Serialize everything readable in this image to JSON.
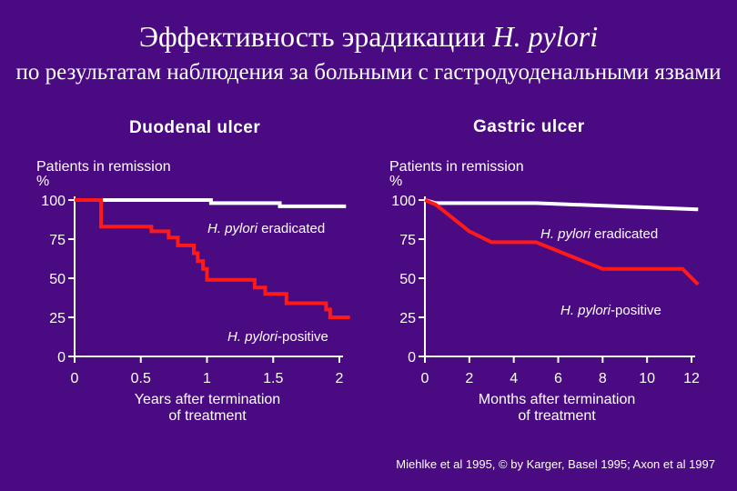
{
  "title_main": "Эффективность эрадикации ",
  "title_italic": "H. pylori",
  "subtitle": "по результатам наблюдения за больными с гастродуоденальными язвами",
  "source": "Miehlke et al 1995, © by Karger, Basel 1995; Axon et al 1997",
  "colors": {
    "background": "#4a0a82",
    "eradicated": "#ffffff",
    "positive": "#ff1a1a",
    "axis": "#ffffff"
  },
  "chart_data": [
    {
      "type": "line",
      "title": "Duodenal ulcer",
      "ylabel": "Patients in remission\n%",
      "xlabel": "Years after termination\nof treatment",
      "xlim": [
        0,
        2
      ],
      "ylim": [
        0,
        100
      ],
      "xticks": [
        0,
        0.5,
        1,
        1.5,
        2
      ],
      "xtick_labels": [
        "0",
        "0.5",
        "1",
        "1.5",
        "2"
      ],
      "yticks": [
        0,
        25,
        50,
        75,
        100
      ],
      "ytick_labels": [
        "0",
        "25",
        "50",
        "75",
        "100"
      ],
      "step": true,
      "series": [
        {
          "name": "H. pylori eradicated",
          "label_prefix": "H. pylori",
          "label_suffix": " eradicated",
          "color": "#ffffff",
          "points": [
            [
              0,
              100
            ],
            [
              1.03,
              100
            ],
            [
              1.03,
              98
            ],
            [
              1.55,
              98
            ],
            [
              1.55,
              96
            ],
            [
              2.05,
              96
            ]
          ]
        },
        {
          "name": "H. pylori-positive",
          "label_prefix": "H. pylori",
          "label_suffix": "-positive",
          "color": "#ff1a1a",
          "points": [
            [
              0,
              100
            ],
            [
              0.2,
              100
            ],
            [
              0.2,
              83
            ],
            [
              0.58,
              83
            ],
            [
              0.58,
              80
            ],
            [
              0.71,
              80
            ],
            [
              0.71,
              76
            ],
            [
              0.78,
              76
            ],
            [
              0.78,
              71
            ],
            [
              0.9,
              71
            ],
            [
              0.9,
              66
            ],
            [
              0.93,
              66
            ],
            [
              0.93,
              61
            ],
            [
              0.97,
              61
            ],
            [
              0.97,
              56
            ],
            [
              1.0,
              56
            ],
            [
              1.0,
              49
            ],
            [
              1.36,
              49
            ],
            [
              1.36,
              44
            ],
            [
              1.44,
              44
            ],
            [
              1.44,
              40
            ],
            [
              1.6,
              40
            ],
            [
              1.6,
              34
            ],
            [
              1.9,
              34
            ],
            [
              1.9,
              30
            ],
            [
              1.93,
              30
            ],
            [
              1.93,
              25
            ],
            [
              2.08,
              25
            ]
          ]
        }
      ]
    },
    {
      "type": "line",
      "title": "Gastric ulcer",
      "ylabel": "Patients in remission\n%",
      "xlabel": "Months after termination\nof treatment",
      "xlim": [
        0,
        12
      ],
      "ylim": [
        0,
        100
      ],
      "xticks": [
        0,
        2,
        4,
        6,
        8,
        10,
        12
      ],
      "xtick_labels": [
        "0",
        "2",
        "4",
        "6",
        "8",
        "10",
        "12"
      ],
      "yticks": [
        0,
        25,
        50,
        75,
        100
      ],
      "ytick_labels": [
        "0",
        "25",
        "50",
        "75",
        "100"
      ],
      "step": false,
      "series": [
        {
          "name": "H. pylori eradicated",
          "label_prefix": "H. pylori",
          "label_suffix": " eradicated",
          "color": "#ffffff",
          "points": [
            [
              0,
              100
            ],
            [
              0.5,
              98
            ],
            [
              5,
              98
            ],
            [
              12.3,
              94
            ]
          ]
        },
        {
          "name": "H. pylori-positive",
          "label_prefix": "H. pylori",
          "label_suffix": "-positive",
          "color": "#ff1a1a",
          "points": [
            [
              0,
              100
            ],
            [
              0.5,
              97
            ],
            [
              2,
              80
            ],
            [
              3,
              73
            ],
            [
              5,
              73
            ],
            [
              8,
              56
            ],
            [
              11.6,
              56
            ],
            [
              12.3,
              46
            ]
          ]
        }
      ]
    }
  ]
}
